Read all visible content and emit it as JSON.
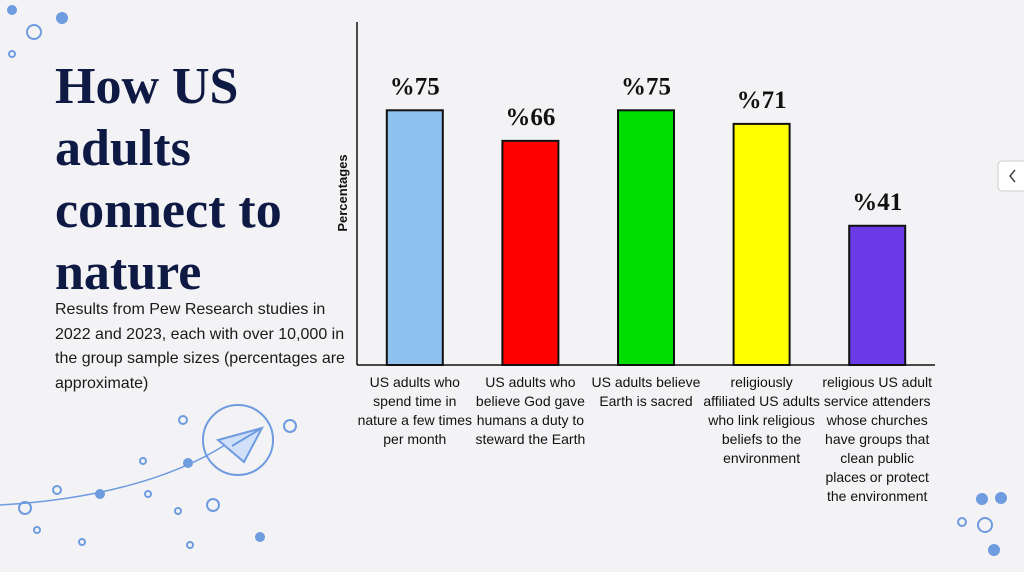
{
  "chart_data": {
    "type": "bar",
    "title": "How US adults connect to nature",
    "subtitle": "Results from Pew Research studies in 2022 and 2023, each with over 10,000 in the group sample sizes (percentages are approximate)",
    "y_label": "Percentages",
    "categories": [
      "US adults who spend time in nature a few times per month",
      "US adults who believe God gave humans a duty to steward the Earth",
      "US adults believe Earth is sacred",
      "religiously affiliated US adults who link religious beliefs to the environment",
      "religious US adult service attenders whose churches have groups that clean public places or protect the environment"
    ],
    "values": [
      75,
      66,
      75,
      71,
      41
    ],
    "value_labels": [
      "%75",
      "%66",
      "%75",
      "%71",
      "%41"
    ],
    "colors": [
      "#8fc1ee",
      "#ff0000",
      "#00dd00",
      "#ffff00",
      "#6a3be6"
    ],
    "ylim": [
      0,
      101
    ]
  }
}
